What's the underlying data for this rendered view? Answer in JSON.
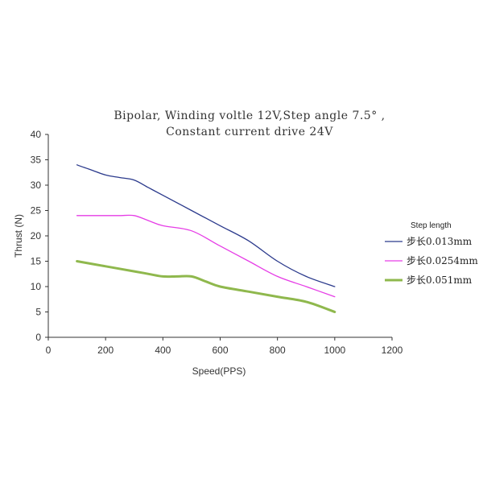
{
  "chart_data": {
    "type": "line",
    "title_lines": [
      "Bipolar, Winding voltle 12V,Step angle 7.5° ,",
      "Constant current drive 24V"
    ],
    "xlabel": "Speed(PPS)",
    "ylabel": "Thrust (N)",
    "xlim": [
      0,
      1200
    ],
    "ylim": [
      0,
      40
    ],
    "x_ticks": [
      0,
      200,
      400,
      600,
      800,
      1000,
      1200
    ],
    "y_ticks": [
      0,
      5,
      10,
      15,
      20,
      25,
      30,
      35,
      40
    ],
    "grid": false,
    "legend": {
      "title": "Step length",
      "position": "right"
    },
    "series": [
      {
        "name": "步长0.013mm",
        "color": "#2b3a8c",
        "x": [
          100,
          150,
          200,
          250,
          300,
          350,
          400,
          500,
          600,
          700,
          800,
          900,
          1000
        ],
        "y": [
          34,
          33,
          32,
          31.5,
          31,
          29.5,
          28,
          25,
          22,
          19,
          15,
          12,
          10
        ]
      },
      {
        "name": "步长0.0254mm",
        "color": "#e63de6",
        "x": [
          100,
          200,
          250,
          300,
          350,
          400,
          500,
          600,
          700,
          800,
          900,
          1000
        ],
        "y": [
          24,
          24,
          24,
          24,
          23,
          22,
          21,
          18,
          15,
          12,
          10,
          8
        ]
      },
      {
        "name": "步长0.051mm",
        "color": "#8fb84d",
        "x": [
          100,
          200,
          300,
          350,
          400,
          450,
          500,
          550,
          600,
          700,
          800,
          900,
          1000
        ],
        "y": [
          15,
          14,
          13,
          12.5,
          12,
          12,
          12,
          11,
          10,
          9,
          8,
          7,
          5
        ]
      }
    ]
  }
}
